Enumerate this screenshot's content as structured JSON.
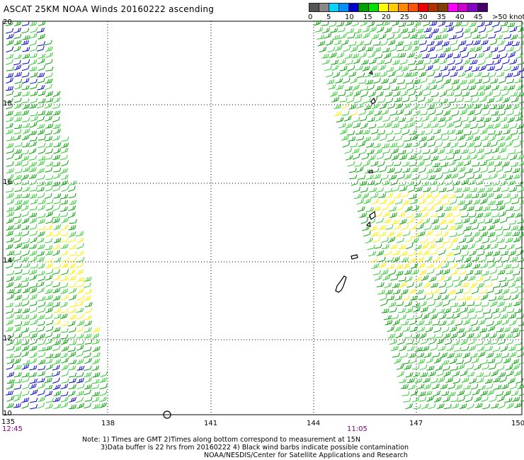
{
  "title": "ASCAT 25KM NOAA Winds 20160222 ascending",
  "legend": {
    "colors": [
      "#555555",
      "#888888",
      "#00d4ff",
      "#0090ff",
      "#0000cc",
      "#00a000",
      "#00e000",
      "#ffff00",
      "#ffcc00",
      "#ff8800",
      "#ff5500",
      "#ee0000",
      "#b03000",
      "#804000",
      "#ff00ff",
      "#cc00cc",
      "#8800cc",
      "#440066"
    ],
    "labels": [
      "0",
      "5",
      "10",
      "15",
      "20",
      "25",
      "30",
      "35",
      "40",
      "45",
      ">50 knots"
    ]
  },
  "axes": {
    "lat_labels": [
      "20",
      "18",
      "16",
      "14",
      "12",
      "10"
    ],
    "lon_labels": [
      "135",
      "138",
      "141",
      "144",
      "147",
      "150"
    ]
  },
  "swaths": [
    {
      "name": "left",
      "time": "12:45"
    },
    {
      "name": "right",
      "time": "11:05"
    }
  ],
  "notes": [
    "Note: 1) Times are GMT 2)Times along bottom correspond to measurement at 15N",
    "3)Data buffer is 22 hrs from 20160222 4) Black wind barbs indicate possible contamination",
    "NOAA/NESDIS/Center for Satellite Applications and Research"
  ],
  "colors": {
    "barb_green": "#00a000",
    "barb_green_light": "#30cc30",
    "barb_blue": "#0000cc",
    "barb_yellow": "#ffee00",
    "time_label": "#800080"
  }
}
